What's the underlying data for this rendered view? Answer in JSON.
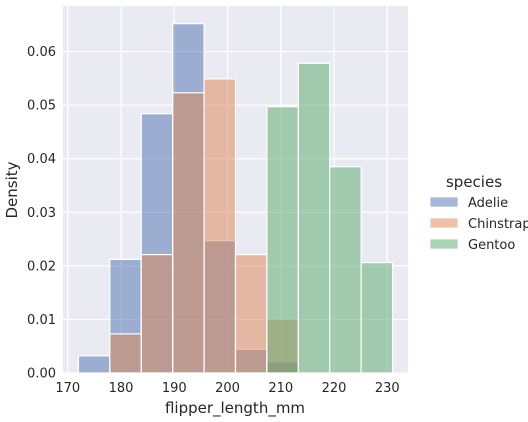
{
  "chart_data": {
    "type": "bar",
    "subtype": "overlaid-histogram",
    "xlabel": "flipper_length_mm",
    "ylabel": "Density",
    "xlim": [
      169.1,
      233.9
    ],
    "ylim": [
      0,
      0.0685
    ],
    "x_ticks": [
      170,
      180,
      190,
      200,
      210,
      220,
      230
    ],
    "y_ticks": [
      0.0,
      0.01,
      0.02,
      0.03,
      0.04,
      0.05,
      0.06
    ],
    "grid": true,
    "legend_placement": "right",
    "legend_title": "species",
    "bin_edges": [
      172,
      177.9,
      183.8,
      189.7,
      195.6,
      201.5,
      207.4,
      213.3,
      219.2,
      225.1,
      231
    ],
    "series": [
      {
        "name": "Adelie",
        "color": "#4c72b0",
        "values": [
          0.0032,
          0.0212,
          0.0484,
          0.0652,
          0.0247,
          0.0044,
          0.0021,
          0,
          0,
          0
        ]
      },
      {
        "name": "Chinstrap",
        "color": "#dd8452",
        "values": [
          0,
          0.0073,
          0.0221,
          0.0523,
          0.0549,
          0.0221,
          0.0101,
          0,
          0,
          0
        ]
      },
      {
        "name": "Gentoo",
        "color": "#55a868",
        "values": [
          0,
          0,
          0,
          0,
          0,
          0,
          0.0497,
          0.0578,
          0.0385,
          0.0206
        ]
      }
    ]
  }
}
